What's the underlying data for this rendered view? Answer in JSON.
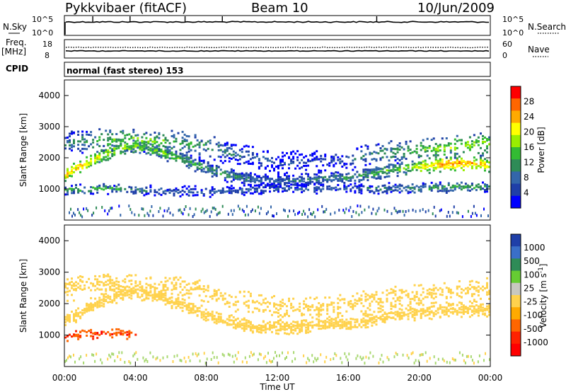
{
  "header": {
    "title": "Pykkvibaer (fitACF)",
    "beam": "Beam 10",
    "date": "10/Jun/2009"
  },
  "panel_nsky": {
    "left_label": "N.Sky",
    "left_ticks": [
      "10^5",
      "10^0"
    ],
    "right_ticks": [
      "10^5",
      "10^0"
    ],
    "right_label": "N.Search"
  },
  "panel_freq": {
    "left_label_1": "Freq.",
    "left_label_2": "[MHz]",
    "left_ticks": [
      "18",
      "8"
    ],
    "right_ticks": [
      "60",
      "0"
    ],
    "right_label": "Nave"
  },
  "panel_cpid": {
    "left_label": "CPID",
    "text": "normal (fast stereo) 153"
  },
  "chart_data": [
    {
      "type": "heatmap",
      "title": "",
      "xlabel": "",
      "ylabel": "Slant Range [km]",
      "xlim": [
        "00:00",
        "24:00"
      ],
      "ylim": [
        0,
        4500
      ],
      "yticks": [
        1000,
        2000,
        3000,
        4000
      ],
      "colorbar": {
        "label": "Power [dB]",
        "ticks": [
          "28",
          "24",
          "20",
          "16",
          "12",
          "8",
          "4"
        ],
        "colors": [
          "#ff0000",
          "#ff6600",
          "#ffaa00",
          "#ffff00",
          "#99ee00",
          "#33bb33",
          "#2e8b57",
          "#3366aa",
          "#1f3fa8",
          "#0000ff"
        ]
      },
      "bands": [
        {
          "name": "main",
          "x": [
            0,
            1,
            2,
            3,
            4,
            5,
            6,
            7,
            8,
            9,
            10,
            11,
            12,
            13,
            14,
            15,
            16,
            17,
            18,
            19,
            20,
            21,
            22,
            23,
            24
          ],
          "y": [
            1500,
            1800,
            2100,
            2300,
            2400,
            2300,
            2100,
            1900,
            1700,
            1500,
            1400,
            1300,
            1300,
            1300,
            1350,
            1400,
            1400,
            1500,
            1600,
            1700,
            1750,
            1800,
            1850,
            1850,
            1800
          ],
          "power_dB": [
            24,
            22,
            20,
            18,
            18,
            16,
            16,
            14,
            12,
            12,
            10,
            8,
            8,
            8,
            10,
            10,
            12,
            12,
            14,
            16,
            20,
            24,
            26,
            24,
            22
          ]
        },
        {
          "name": "upper",
          "x": [
            0,
            2,
            4,
            6,
            8,
            10,
            12,
            14,
            16,
            18,
            20,
            22,
            24
          ],
          "y": [
            2500,
            2600,
            2600,
            2550,
            2400,
            2100,
            1900,
            1900,
            2000,
            2200,
            2300,
            2400,
            2500
          ],
          "power_dB": [
            10,
            14,
            16,
            14,
            12,
            8,
            6,
            6,
            8,
            12,
            14,
            18,
            16
          ]
        },
        {
          "name": "lower",
          "x": [
            0,
            2,
            4,
            6,
            8,
            10,
            12,
            14,
            16,
            18,
            20,
            22,
            24
          ],
          "y": [
            1000,
            1050,
            1000,
            950,
            950,
            1000,
            1050,
            1050,
            1050,
            1050,
            1050,
            1100,
            1100
          ],
          "power_dB": [
            12,
            14,
            10,
            8,
            8,
            8,
            8,
            8,
            8,
            10,
            12,
            14,
            12
          ]
        }
      ]
    },
    {
      "type": "heatmap",
      "title": "",
      "xlabel": "Time UT",
      "ylabel": "Slant Range [km]",
      "xlim": [
        "00:00",
        "24:00"
      ],
      "xticks": [
        "00:00",
        "04:00",
        "08:00",
        "12:00",
        "16:00",
        "20:00",
        "00:00"
      ],
      "ylim": [
        0,
        4500
      ],
      "yticks": [
        1000,
        2000,
        3000,
        4000
      ],
      "colorbar": {
        "label": "Velocity [m s^-1]",
        "ticks": [
          "1000",
          "500",
          "100",
          "25",
          "-25",
          "-100",
          "-500",
          "-1000"
        ],
        "colors": [
          "#1f3fa8",
          "#3a6fc8",
          "#2e8b57",
          "#66cc33",
          "#c8c8c0",
          "#ffd24d",
          "#ffaa00",
          "#ff6600",
          "#ff2200",
          "#ff0000"
        ]
      },
      "bands": [
        {
          "name": "main",
          "x": [
            0,
            1,
            2,
            3,
            4,
            5,
            6,
            7,
            8,
            9,
            10,
            11,
            12,
            13,
            14,
            15,
            16,
            17,
            18,
            19,
            20,
            21,
            22,
            23,
            24
          ],
          "y": [
            1500,
            1800,
            2100,
            2300,
            2400,
            2300,
            2100,
            1900,
            1700,
            1500,
            1400,
            1300,
            1300,
            1300,
            1350,
            1400,
            1400,
            1500,
            1600,
            1700,
            1750,
            1800,
            1850,
            1850,
            1800
          ],
          "velocity": [
            0,
            0,
            0,
            0,
            0,
            0,
            0,
            0,
            0,
            0,
            0,
            0,
            0,
            0,
            0,
            0,
            0,
            0,
            0,
            0,
            0,
            0,
            0,
            0,
            0
          ]
        },
        {
          "name": "upper",
          "x": [
            0,
            2,
            4,
            6,
            8,
            10,
            12,
            14,
            16,
            18,
            20,
            22,
            24
          ],
          "y": [
            2500,
            2600,
            2600,
            2550,
            2400,
            2100,
            1900,
            1900,
            2000,
            2200,
            2300,
            2400,
            2500
          ],
          "velocity": [
            0,
            0,
            0,
            0,
            0,
            0,
            0,
            0,
            0,
            0,
            0,
            0,
            0
          ]
        },
        {
          "name": "lower",
          "x": [
            0,
            1,
            2,
            3,
            4
          ],
          "y": [
            1000,
            1050,
            1100,
            1150,
            1000
          ],
          "velocity": [
            -300,
            -200,
            -150,
            -200,
            -100
          ]
        }
      ]
    }
  ]
}
